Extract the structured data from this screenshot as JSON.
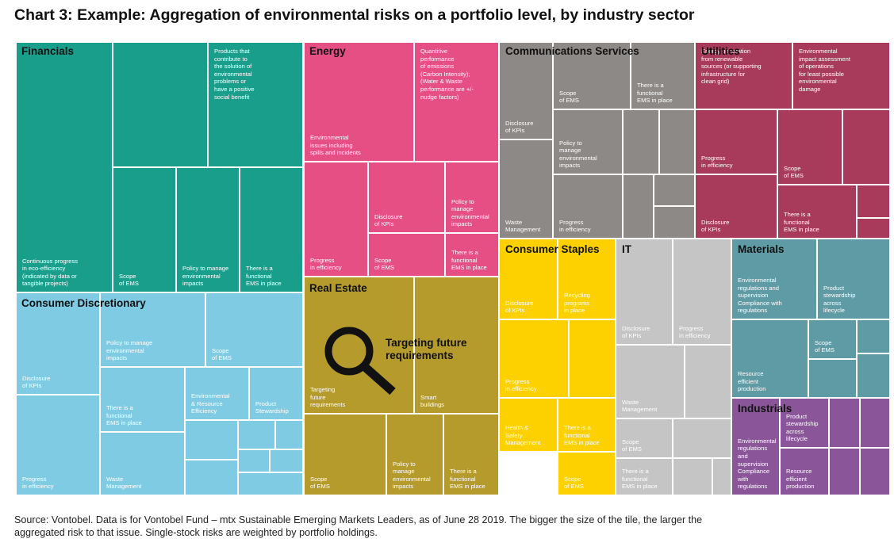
{
  "title": "Chart 3: Example: Aggregation of environmental risks on a portfolio level, by industry sector",
  "footnote": "Source: Vontobel. Data is for Vontobel Fund – mtx Sustainable Emerging Markets Leaders, as of June 28 2019. The bigger the size of the tile, the larger the aggregated risk to that issue. Single-stock risks are weighted by portfolio holdings.",
  "callout": "Targeting future\nrequirements",
  "colors": {
    "Financials": "#1a9e8c",
    "Energy": "#e54f84",
    "Communications Services": "#8c8987",
    "Utilities": "#a83b5c",
    "Consumer Discretionary": "#7fcbe3",
    "Real Estate": "#b59a2c",
    "Consumer Staples": "#fdd000",
    "IT": "#c5c5c5",
    "Materials": "#5f9ba5",
    "Industrials": "#8a5699"
  },
  "chart_data": {
    "type": "treemap",
    "title": "Chart 3: Example: Aggregation of environmental risks on a portfolio level, by industry sector",
    "sectors": [
      {
        "name": "Financials",
        "tiles": [
          "Continuous progress\nin eco-efficiency\n(indicated by data or\ntangible projects)",
          "",
          "Products that\ncontribute to\nthe solution of\nenvironmental\nproblems or\nhave a positive\nsocial benefit",
          "Scope\nof EMS",
          "Policy to manage\nenvironmental\nimpacts",
          "There is a\nfunctional\nEMS in place"
        ]
      },
      {
        "name": "Energy",
        "tiles": [
          "Environmental\nissues including\nspills and incidents",
          "Quantitive\nperformance\nof emissions\n(Carbon Intensity);\n(Water & Waste\nperformance are +/-\nnudge factors)",
          "Progress\nin efficiency",
          "Disclosure\nof KPIs",
          "Policy to\nmanage\nenvironmental\nimpacts",
          "Scope\nof EMS",
          "There is a\nfunctional\nEMS in place"
        ]
      },
      {
        "name": "Communications Services",
        "tiles": [
          "Disclosure\nof KPIs",
          "Scope\nof EMS",
          "There is a\nfunctional\nEMS in place",
          "Waste\nManagement",
          "Policy to\nmanage\nenvironmental\nimpacts",
          "Progress\nin efficiency",
          "",
          "",
          "",
          "",
          "",
          ""
        ]
      },
      {
        "name": "Utilities",
        "tiles": [
          "Energy generation\nfrom renewable\nsources (or supporting\ninfrastructure for\nclean grid)",
          "Environmental\nimpact assessment\nof operations\nfor least possible\nenvironmental\ndamage",
          "Progress\nin efficiency",
          "Scope\nof EMS",
          "Disclosure\nof KPIs",
          "There is a\nfunctional\nEMS in place",
          "",
          "",
          ""
        ]
      },
      {
        "name": "Consumer Discretionary",
        "tiles": [
          "Disclosure\nof KPIs",
          "Policy to manage\nenvironmental\nimpacts",
          "Scope\nof EMS",
          "Progress\nin efficiency",
          "There is a\nfunctional\nEMS in place",
          "Environmental\n& Resource\nEfficiency",
          "Product\nStewardship",
          "Waste\nManagement",
          "",
          "",
          "",
          "",
          "",
          "",
          ""
        ]
      },
      {
        "name": "Real Estate",
        "tiles": [
          "Targeting\nfuture\nrequirements",
          "Smart\nbuildings",
          "Scope\nof EMS",
          "Policy to\nmanage\nenvironmental\nimpacts",
          "There is a\nfunctional\nEMS in place"
        ]
      },
      {
        "name": "Consumer Staples",
        "tiles": [
          "Disclosure\nof KPIs",
          "Recycling\nprograms\nin place",
          "Progress\nin efficiency",
          "Health &\nSafety\nManagement",
          "There is a\nfunctional\nEMS in place",
          "Scope\nof EMS",
          ""
        ]
      },
      {
        "name": "IT",
        "tiles": [
          "Disclosure\nof KPIs",
          "Progress\nin efficiency",
          "Waste\nManagement",
          "Scope\nof EMS",
          "There is a\nfunctional\nEMS in place",
          "",
          "",
          "",
          ""
        ]
      },
      {
        "name": "Materials",
        "tiles": [
          "Environmental\nregulations and\nsupervision\nCompliance with\nregulations",
          "Product\nstewardship\nacross\nlifecycle",
          "Resource\nefficient\nproduction",
          "Scope\nof EMS",
          "",
          "",
          ""
        ]
      },
      {
        "name": "Industrials",
        "tiles": [
          "Environmental\nregulations\nand\nsupervision\nCompliance\nwith\nregulations",
          "Product\nstewardship\nacross\nlifecycle",
          "Resource\nefficient\nproduction",
          "",
          "",
          "",
          ""
        ]
      }
    ]
  }
}
